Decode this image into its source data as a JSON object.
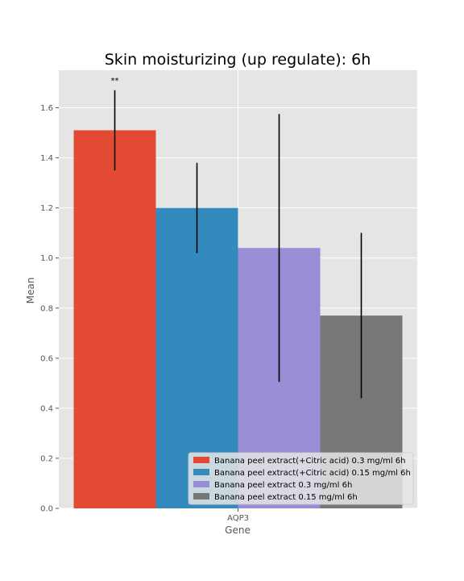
{
  "chart_data": {
    "type": "bar",
    "title": "Skin moisturizing (up regulate): 6h",
    "xlabel": "Gene",
    "ylabel": "Mean",
    "categories": [
      "AQP3"
    ],
    "ylim": [
      0,
      1.75
    ],
    "yticks": [
      0.0,
      0.2,
      0.4,
      0.6,
      0.8,
      1.0,
      1.2,
      1.4,
      1.6
    ],
    "grid": true,
    "legend_position": "bottom-right",
    "series": [
      {
        "name": "Banana peel extract(+Citric acid) 0.3 mg/ml 6h",
        "values": [
          1.51
        ],
        "error": [
          0.16
        ],
        "color": "#e24a33",
        "annotation": "**"
      },
      {
        "name": "Banana peel extract(+Citric acid) 0.15 mg/ml 6h",
        "values": [
          1.2
        ],
        "error": [
          0.18
        ],
        "color": "#348abd",
        "annotation": ""
      },
      {
        "name": "Banana peel extract 0.3 mg/ml 6h",
        "values": [
          1.04
        ],
        "error": [
          0.535
        ],
        "color": "#988ed5",
        "annotation": ""
      },
      {
        "name": "Banana peel extract 0.15 mg/ml 6h",
        "values": [
          0.77
        ],
        "error": [
          0.33
        ],
        "color": "#777777",
        "annotation": ""
      }
    ]
  }
}
